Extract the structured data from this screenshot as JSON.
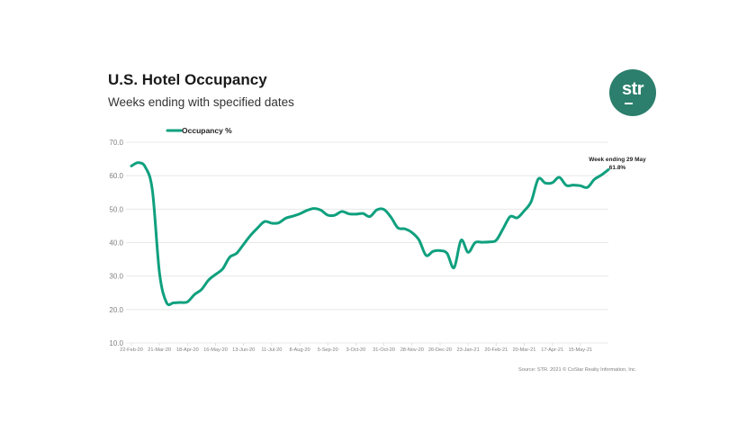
{
  "header": {
    "title": "U.S. Hotel Occupancy",
    "subtitle": "Weeks ending with specified dates",
    "logo_text": "str"
  },
  "footer": {
    "source": "Source: STR. 2021 © CoStar Realty Information, Inc."
  },
  "colors": {
    "line": "#0fa07e",
    "logo": "#2b7f6c",
    "grid": "#e8e8e8"
  },
  "chart_data": {
    "type": "line",
    "title": "U.S. Hotel Occupancy",
    "subtitle": "Weeks ending with specified dates",
    "xlabel": "",
    "ylabel": "",
    "ylim": [
      10,
      70
    ],
    "yticks": [
      "70.0",
      "60.0",
      "50.0",
      "40.0",
      "30.0",
      "20.0",
      "10.0"
    ],
    "ytick_values": [
      70,
      60,
      50,
      40,
      30,
      20,
      10
    ],
    "grid": true,
    "legend": {
      "position": "top-left",
      "entries": [
        "Occupancy %"
      ]
    },
    "xtick_labels": [
      "22-Feb-20",
      "21-Mar-20",
      "18-Apr-20",
      "16-May-20",
      "13-Jun-20",
      "11-Jul-20",
      "8-Aug-20",
      "5-Sep-20",
      "3-Oct-20",
      "31-Oct-20",
      "28-Nov-20",
      "26-Dec-20",
      "23-Jan-21",
      "20-Feb-21",
      "20-Mar-21",
      "17-Apr-21",
      "15-May-21"
    ],
    "xtick_every_weeks": 4,
    "annotation": {
      "line1": "Week ending 29 May",
      "line2": "61.8%"
    },
    "series": [
      {
        "name": "Occupancy %",
        "values": [
          62.9,
          63.9,
          62.5,
          55.5,
          31.0,
          22.1,
          22.0,
          22.1,
          22.3,
          24.5,
          26.0,
          28.8,
          30.5,
          32.1,
          35.6,
          36.8,
          39.5,
          42.2,
          44.4,
          46.3,
          45.8,
          45.9,
          47.3,
          47.9,
          48.6,
          49.6,
          50.2,
          49.7,
          48.2,
          48.2,
          49.3,
          48.6,
          48.5,
          48.7,
          47.8,
          49.8,
          49.9,
          47.6,
          44.4,
          44.1,
          43.0,
          40.8,
          36.2,
          37.4,
          37.6,
          36.8,
          32.5,
          40.7,
          37.1,
          40.0,
          40.1,
          40.2,
          40.7,
          44.2,
          47.8,
          47.4,
          49.5,
          52.3,
          59.0,
          57.8,
          57.9,
          59.5,
          57.1,
          57.2,
          57.0,
          56.5,
          58.9,
          60.2,
          61.8
        ]
      }
    ]
  }
}
